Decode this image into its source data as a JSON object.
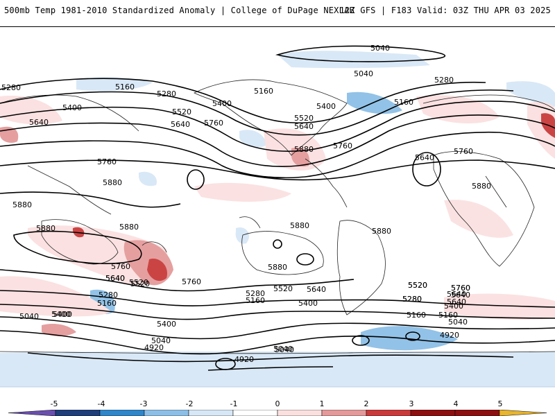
{
  "header": {
    "left_title": "500mb Temp 1981-2010 Standardized Anomaly | College of DuPage NEXLAB",
    "right_title": "12Z GFS | F183 Valid: 03Z THU APR 03 2025"
  },
  "colors": {
    "background": "#ffffff",
    "contour": "#000000",
    "coast": "#222222",
    "scale": [
      "#6a4fb0",
      "#1f3e7a",
      "#2f86c8",
      "#8dbfe6",
      "#d7e7f6",
      "#ffffff",
      "#fbe0e0",
      "#e49a9a",
      "#c93a3a",
      "#8c1010",
      "#e8b52b"
    ]
  },
  "legend": {
    "ticks": [
      "-5",
      "-4",
      "-3",
      "-2",
      "-1",
      "0",
      "1",
      "2",
      "3",
      "4",
      "5"
    ]
  },
  "contour_labels": [
    "5040",
    "5040",
    "5160",
    "5280",
    "5280",
    "5160",
    "5400",
    "5160",
    "5280",
    "5520",
    "5400",
    "5640",
    "5400",
    "5520",
    "5640",
    "5640",
    "5760",
    "5760",
    "5880",
    "5760",
    "5880",
    "5640",
    "5760",
    "5880",
    "5880",
    "5880",
    "5880",
    "5880",
    "5880",
    "5880",
    "5760",
    "5640",
    "5520",
    "5760",
    "5280",
    "5160",
    "5040",
    "5400",
    "5400",
    "5040",
    "4920",
    "4920",
    "5040",
    "5520",
    "5280",
    "5160",
    "5640",
    "5400",
    "5520",
    "5640",
    "5760",
    "5640",
    "5400",
    "5280",
    "5160",
    "5040",
    "4920",
    "5520",
    "5640",
    "5400",
    "5040",
    "5160",
    "5280",
    "5520",
    "5640",
    "5760"
  ]
}
